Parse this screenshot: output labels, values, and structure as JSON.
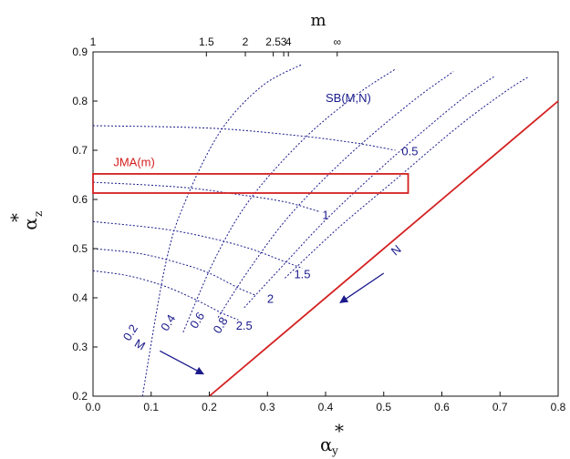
{
  "chart_data": {
    "type": "line",
    "x_axis": {
      "label": "α",
      "label_subscript": "y",
      "label_superscript": "*",
      "range": [
        0.0,
        0.8
      ],
      "ticks": [
        0.0,
        0.1,
        0.2,
        0.3,
        0.4,
        0.5,
        0.6,
        0.7,
        0.8
      ],
      "tick_labels": [
        "0.0",
        "0.1",
        "0.2",
        "0.3",
        "0.4",
        "0.5",
        "0.6",
        "0.7",
        "0.8"
      ]
    },
    "y_axis": {
      "label": "α",
      "label_subscript": "z",
      "label_superscript": "*",
      "range": [
        0.2,
        0.9
      ],
      "ticks": [
        0.2,
        0.3,
        0.4,
        0.5,
        0.6,
        0.7,
        0.8,
        0.9
      ],
      "tick_labels": [
        "0.2",
        "0.3",
        "0.4",
        "0.5",
        "0.6",
        "0.7",
        "0.8",
        "0.9"
      ]
    },
    "top_axis": {
      "label": "m",
      "ticks": [
        {
          "x": 0.0,
          "label": "1"
        },
        {
          "x": 0.195,
          "label": "1.5"
        },
        {
          "x": 0.262,
          "label": "2"
        },
        {
          "x": 0.31,
          "label": "2.5"
        },
        {
          "x": 0.328,
          "label": "3"
        },
        {
          "x": 0.336,
          "label": "4"
        },
        {
          "x": 0.42,
          "label": "∞"
        }
      ]
    },
    "boundary_line": {
      "color": "#d42020",
      "points": [
        [
          0.2,
          0.2
        ],
        [
          0.8,
          0.8
        ]
      ]
    },
    "jma_box": {
      "label": "JMA(m)",
      "x": [
        0.0,
        0.542
      ],
      "y": [
        0.613,
        0.652
      ],
      "color": "#d42020"
    },
    "sb_label": "SB(M,N)",
    "m_family": [
      {
        "label": "0.2",
        "points": [
          [
            0.085,
            0.2
          ],
          [
            0.125,
            0.47
          ],
          [
            0.16,
            0.6
          ],
          [
            0.22,
            0.74
          ],
          [
            0.29,
            0.83
          ],
          [
            0.36,
            0.875
          ]
        ]
      },
      {
        "label": "0.4",
        "points": [
          [
            0.155,
            0.33
          ],
          [
            0.21,
            0.48
          ],
          [
            0.27,
            0.6
          ],
          [
            0.36,
            0.72
          ],
          [
            0.45,
            0.81
          ],
          [
            0.52,
            0.865
          ]
        ]
      },
      {
        "label": "0.6",
        "points": [
          [
            0.215,
            0.36
          ],
          [
            0.27,
            0.46
          ],
          [
            0.34,
            0.57
          ],
          [
            0.44,
            0.69
          ],
          [
            0.55,
            0.8
          ],
          [
            0.62,
            0.86
          ]
        ]
      },
      {
        "label": "0.8",
        "points": [
          [
            0.26,
            0.38
          ],
          [
            0.33,
            0.47
          ],
          [
            0.41,
            0.57
          ],
          [
            0.52,
            0.69
          ],
          [
            0.63,
            0.8
          ],
          [
            0.69,
            0.85
          ]
        ]
      },
      {
        "label": "",
        "points": [
          [
            0.33,
            0.44
          ],
          [
            0.42,
            0.54
          ],
          [
            0.52,
            0.64
          ],
          [
            0.63,
            0.75
          ],
          [
            0.71,
            0.82
          ],
          [
            0.75,
            0.85
          ]
        ]
      }
    ],
    "n_family": [
      {
        "label": "0.5",
        "points": [
          [
            0.0,
            0.75
          ],
          [
            0.2,
            0.745
          ],
          [
            0.35,
            0.73
          ],
          [
            0.45,
            0.715
          ],
          [
            0.52,
            0.7
          ]
        ]
      },
      {
        "label": "1",
        "points": [
          [
            0.0,
            0.635
          ],
          [
            0.15,
            0.625
          ],
          [
            0.25,
            0.61
          ],
          [
            0.33,
            0.595
          ],
          [
            0.39,
            0.575
          ]
        ]
      },
      {
        "label": "1.5",
        "points": [
          [
            0.0,
            0.555
          ],
          [
            0.12,
            0.54
          ],
          [
            0.2,
            0.522
          ],
          [
            0.27,
            0.5
          ],
          [
            0.32,
            0.478
          ],
          [
            0.36,
            0.46
          ]
        ]
      },
      {
        "label": "2",
        "points": [
          [
            0.0,
            0.5
          ],
          [
            0.08,
            0.49
          ],
          [
            0.15,
            0.47
          ],
          [
            0.2,
            0.45
          ],
          [
            0.25,
            0.42
          ],
          [
            0.28,
            0.405
          ]
        ]
      },
      {
        "label": "2.5",
        "points": [
          [
            0.0,
            0.455
          ],
          [
            0.06,
            0.445
          ],
          [
            0.12,
            0.425
          ],
          [
            0.17,
            0.4
          ],
          [
            0.22,
            0.37
          ],
          [
            0.25,
            0.355
          ]
        ]
      }
    ],
    "annotations": {
      "M": {
        "label": "M"
      },
      "N": {
        "label": "N"
      }
    }
  }
}
